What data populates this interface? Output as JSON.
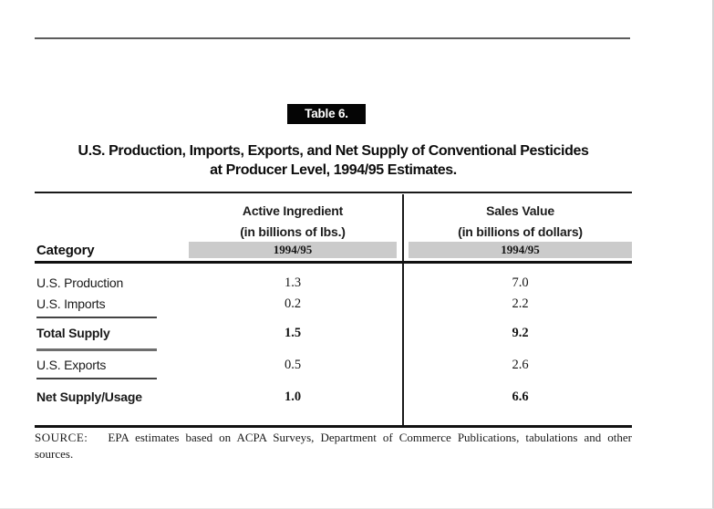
{
  "colors": {
    "shade_bar": "#cbcbcb",
    "tag_bg": "#000000",
    "tag_fg": "#ffffff"
  },
  "document": {
    "tag": "Table 6.",
    "title_line1": "U.S. Production, Imports, Exports, and Net Supply of Conventional Pesticides",
    "title_line2": "at Producer Level, 1994/95 Estimates.",
    "source_label": "SOURCE:",
    "source_body": "EPA estimates based on ACPA Surveys, Department of Commerce Publications, tabulations and other sources."
  },
  "table": {
    "category_header": "Category",
    "groups": [
      {
        "title": "Active Ingredient",
        "subtitle": "(in billions of lbs.)",
        "period": "1994/95"
      },
      {
        "title": "Sales Value",
        "subtitle": "(in billions of dollars)",
        "period": "1994/95"
      }
    ],
    "rows": [
      {
        "label": "U.S. Production",
        "active_ingredient": "1.3",
        "sales_value": "7.0"
      },
      {
        "label": "U.S. Imports",
        "active_ingredient": "0.2",
        "sales_value": "2.2"
      },
      {
        "label": "Total Supply",
        "active_ingredient": "1.5",
        "sales_value": "9.2"
      },
      {
        "label": "U.S. Exports",
        "active_ingredient": "0.5",
        "sales_value": "2.6"
      },
      {
        "label": "Net Supply/Usage",
        "active_ingredient": "1.0",
        "sales_value": "6.6"
      }
    ]
  }
}
